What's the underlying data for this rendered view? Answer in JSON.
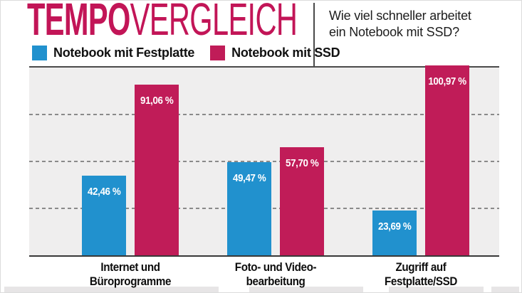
{
  "header": {
    "title_bold": "TEMPO",
    "title_regular": "VERGLEICH",
    "subtitle_line1": "Wie viel schneller arbeitet",
    "subtitle_line2": "ein Notebook mit SSD?"
  },
  "legend": [
    {
      "label": "Notebook mit Festplatte",
      "color": "#2191CE"
    },
    {
      "label": "Notebook mit SSD",
      "color": "#C01C58"
    }
  ],
  "colors": {
    "hdd_blue": "#2191CE",
    "ssd_magenta": "#C01C58",
    "title_magenta": "#C21557",
    "plot_background": "#EFEEEE",
    "axis_line": "#4A4A4A",
    "gridline_gray": "#8A8A8A",
    "value_label": "#FFFFFF",
    "text": "#111111"
  },
  "chart_data": {
    "type": "bar",
    "title": "TEMPOVERGLEICH",
    "subtitle": "Wie viel schneller arbeitet ein Notebook mit SSD?",
    "categories": [
      "Internet und Büroprogramme",
      "Foto- und Videobearbeitung",
      "Zugriff auf Festplatte/SSD"
    ],
    "category_label_lines": [
      [
        "Internet und",
        "Büroprogramme"
      ],
      [
        "Foto- und Video-",
        "bearbeitung"
      ],
      [
        "Zugriff auf",
        "Festplatte/SSD"
      ]
    ],
    "series": [
      {
        "name": "Notebook mit Festplatte",
        "color": "#2191CE",
        "values": [
          42.46,
          49.47,
          23.69
        ],
        "value_labels": [
          "42,46 %",
          "49,47 %",
          "23,69 %"
        ]
      },
      {
        "name": "Notebook mit SSD",
        "color": "#C01C58",
        "values": [
          91.06,
          57.7,
          100.97
        ],
        "value_labels": [
          "91,06 %",
          "57,70 %",
          "100,97 %"
        ]
      }
    ],
    "unit": "%",
    "ylim": [
      0,
      100
    ],
    "gridlines_pct": [
      25,
      50,
      75
    ],
    "grid": "horizontal-dashed",
    "legend_position": "top-left"
  }
}
